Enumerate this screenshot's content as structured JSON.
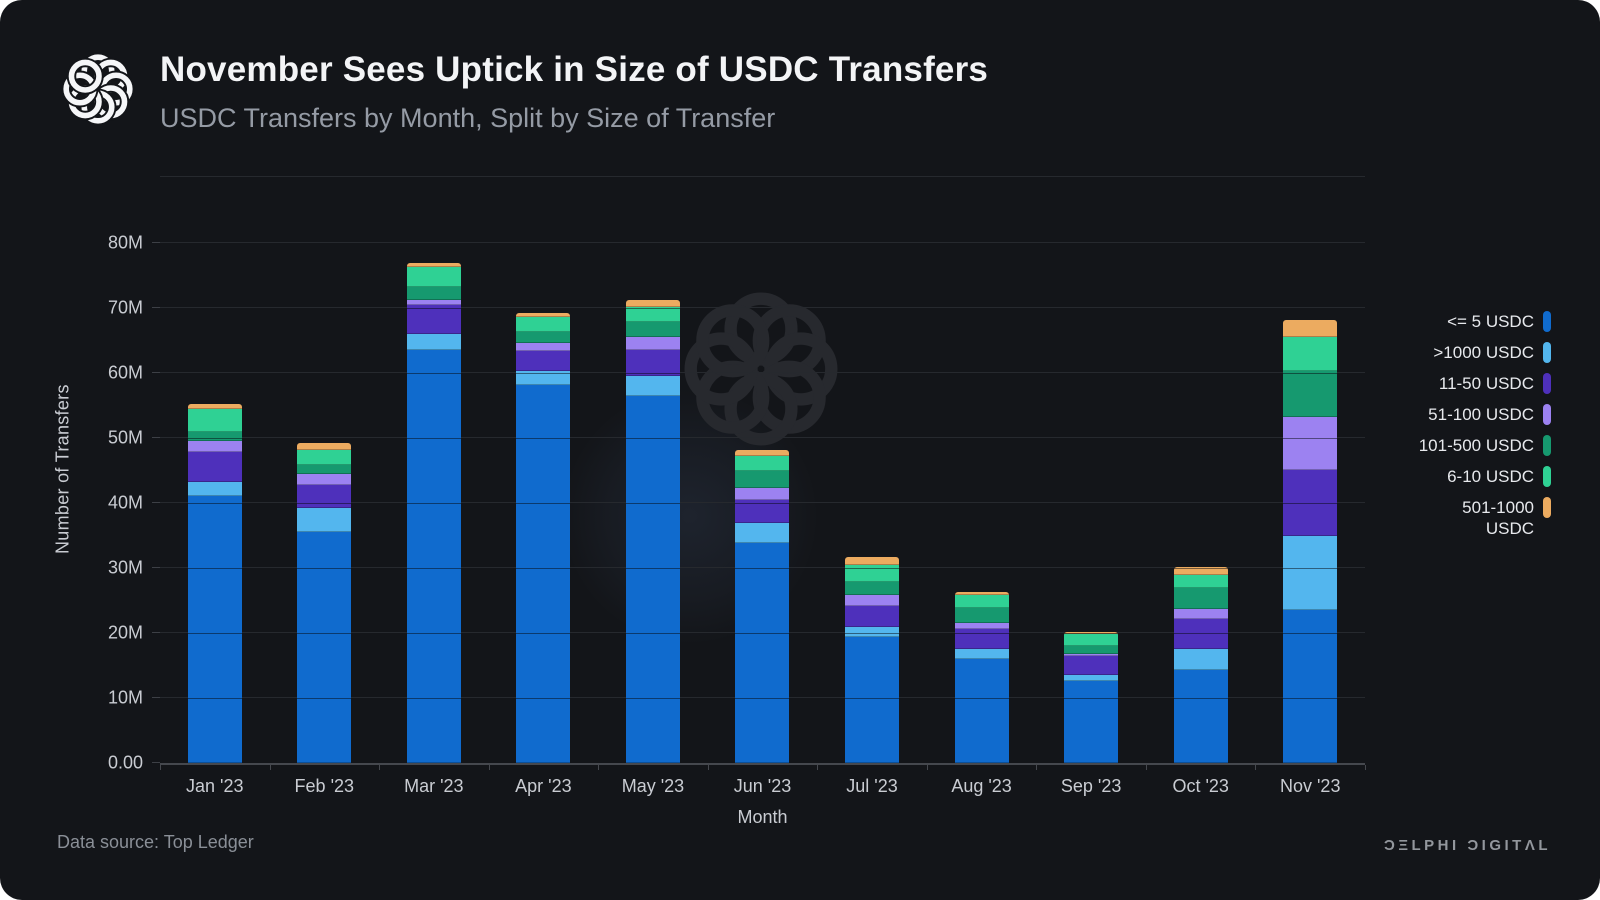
{
  "header": {
    "title": "November Sees Uptick in Size of USDC Transfers",
    "subtitle": "USDC Transfers by Month, Split by Size of Transfer"
  },
  "footer": {
    "source": "Data source: Top Ledger",
    "brand": "ƆΞLPHI ƆIGITΛL"
  },
  "colors": {
    "background": "#131519",
    "gridline": "#26292e",
    "axis_line": "#45484e",
    "axis_text": "#c9ccd2",
    "legend_text": "#e7e9ed",
    "title_text": "#f3f4f6",
    "subtitle_text": "#959ba5"
  },
  "chart_data": {
    "type": "bar",
    "stacked": true,
    "title": "November Sees Uptick in Size of USDC Transfers",
    "subtitle": "USDC Transfers by Month, Split by Size of Transfer",
    "xlabel": "Month",
    "ylabel": "Number of Transfers",
    "units": "millions of transfers",
    "ylim": [
      0,
      90
    ],
    "y_ticks": [
      "0.00",
      "10M",
      "20M",
      "30M",
      "40M",
      "50M",
      "60M",
      "70M",
      "80M"
    ],
    "grid": true,
    "legend_position": "right",
    "categories": [
      "Jan '23",
      "Feb '23",
      "Mar '23",
      "Apr '23",
      "May '23",
      "Jun '23",
      "Jul '23",
      "Aug '23",
      "Sep '23",
      "Oct '23",
      "Nov '23"
    ],
    "series": [
      {
        "name": "<= 5 USDC",
        "color": "#106bce",
        "values": [
          41.1,
          35.5,
          63.5,
          58.2,
          56.5,
          33.8,
          19.4,
          16.0,
          12.6,
          14.3,
          23.5
        ]
      },
      {
        "name": ">1000 USDC",
        "color": "#53b6ee",
        "values": [
          2.1,
          3.7,
          2.5,
          2.1,
          3.0,
          3.1,
          1.5,
          1.6,
          0.9,
          3.2,
          11.4
        ]
      },
      {
        "name": "11-50 USDC",
        "color": "#4e30bb",
        "values": [
          4.6,
          3.5,
          4.4,
          3.1,
          4.0,
          3.6,
          3.3,
          3.0,
          2.9,
          4.7,
          10.2
        ]
      },
      {
        "name": "51-100 USDC",
        "color": "#9c82f1",
        "values": [
          1.8,
          1.7,
          0.8,
          1.2,
          2.0,
          1.8,
          1.7,
          0.9,
          0.4,
          1.5,
          8.1
        ]
      },
      {
        "name": "101-500 USDC",
        "color": "#16996f",
        "values": [
          1.4,
          1.5,
          2.1,
          1.7,
          2.3,
          2.6,
          1.9,
          2.3,
          1.2,
          3.2,
          7.1
        ]
      },
      {
        "name": "6-10 USDC",
        "color": "#2fd194",
        "values": [
          3.5,
          2.2,
          3.0,
          2.3,
          2.4,
          2.3,
          2.7,
          2.1,
          1.9,
          2.0,
          5.3
        ]
      },
      {
        "name": "501-1000 USDC",
        "color": "#ecab60",
        "values": [
          0.7,
          1.2,
          0.7,
          0.7,
          1.1,
          1.0,
          1.2,
          0.4,
          0.2,
          1.2,
          2.6
        ]
      }
    ]
  }
}
